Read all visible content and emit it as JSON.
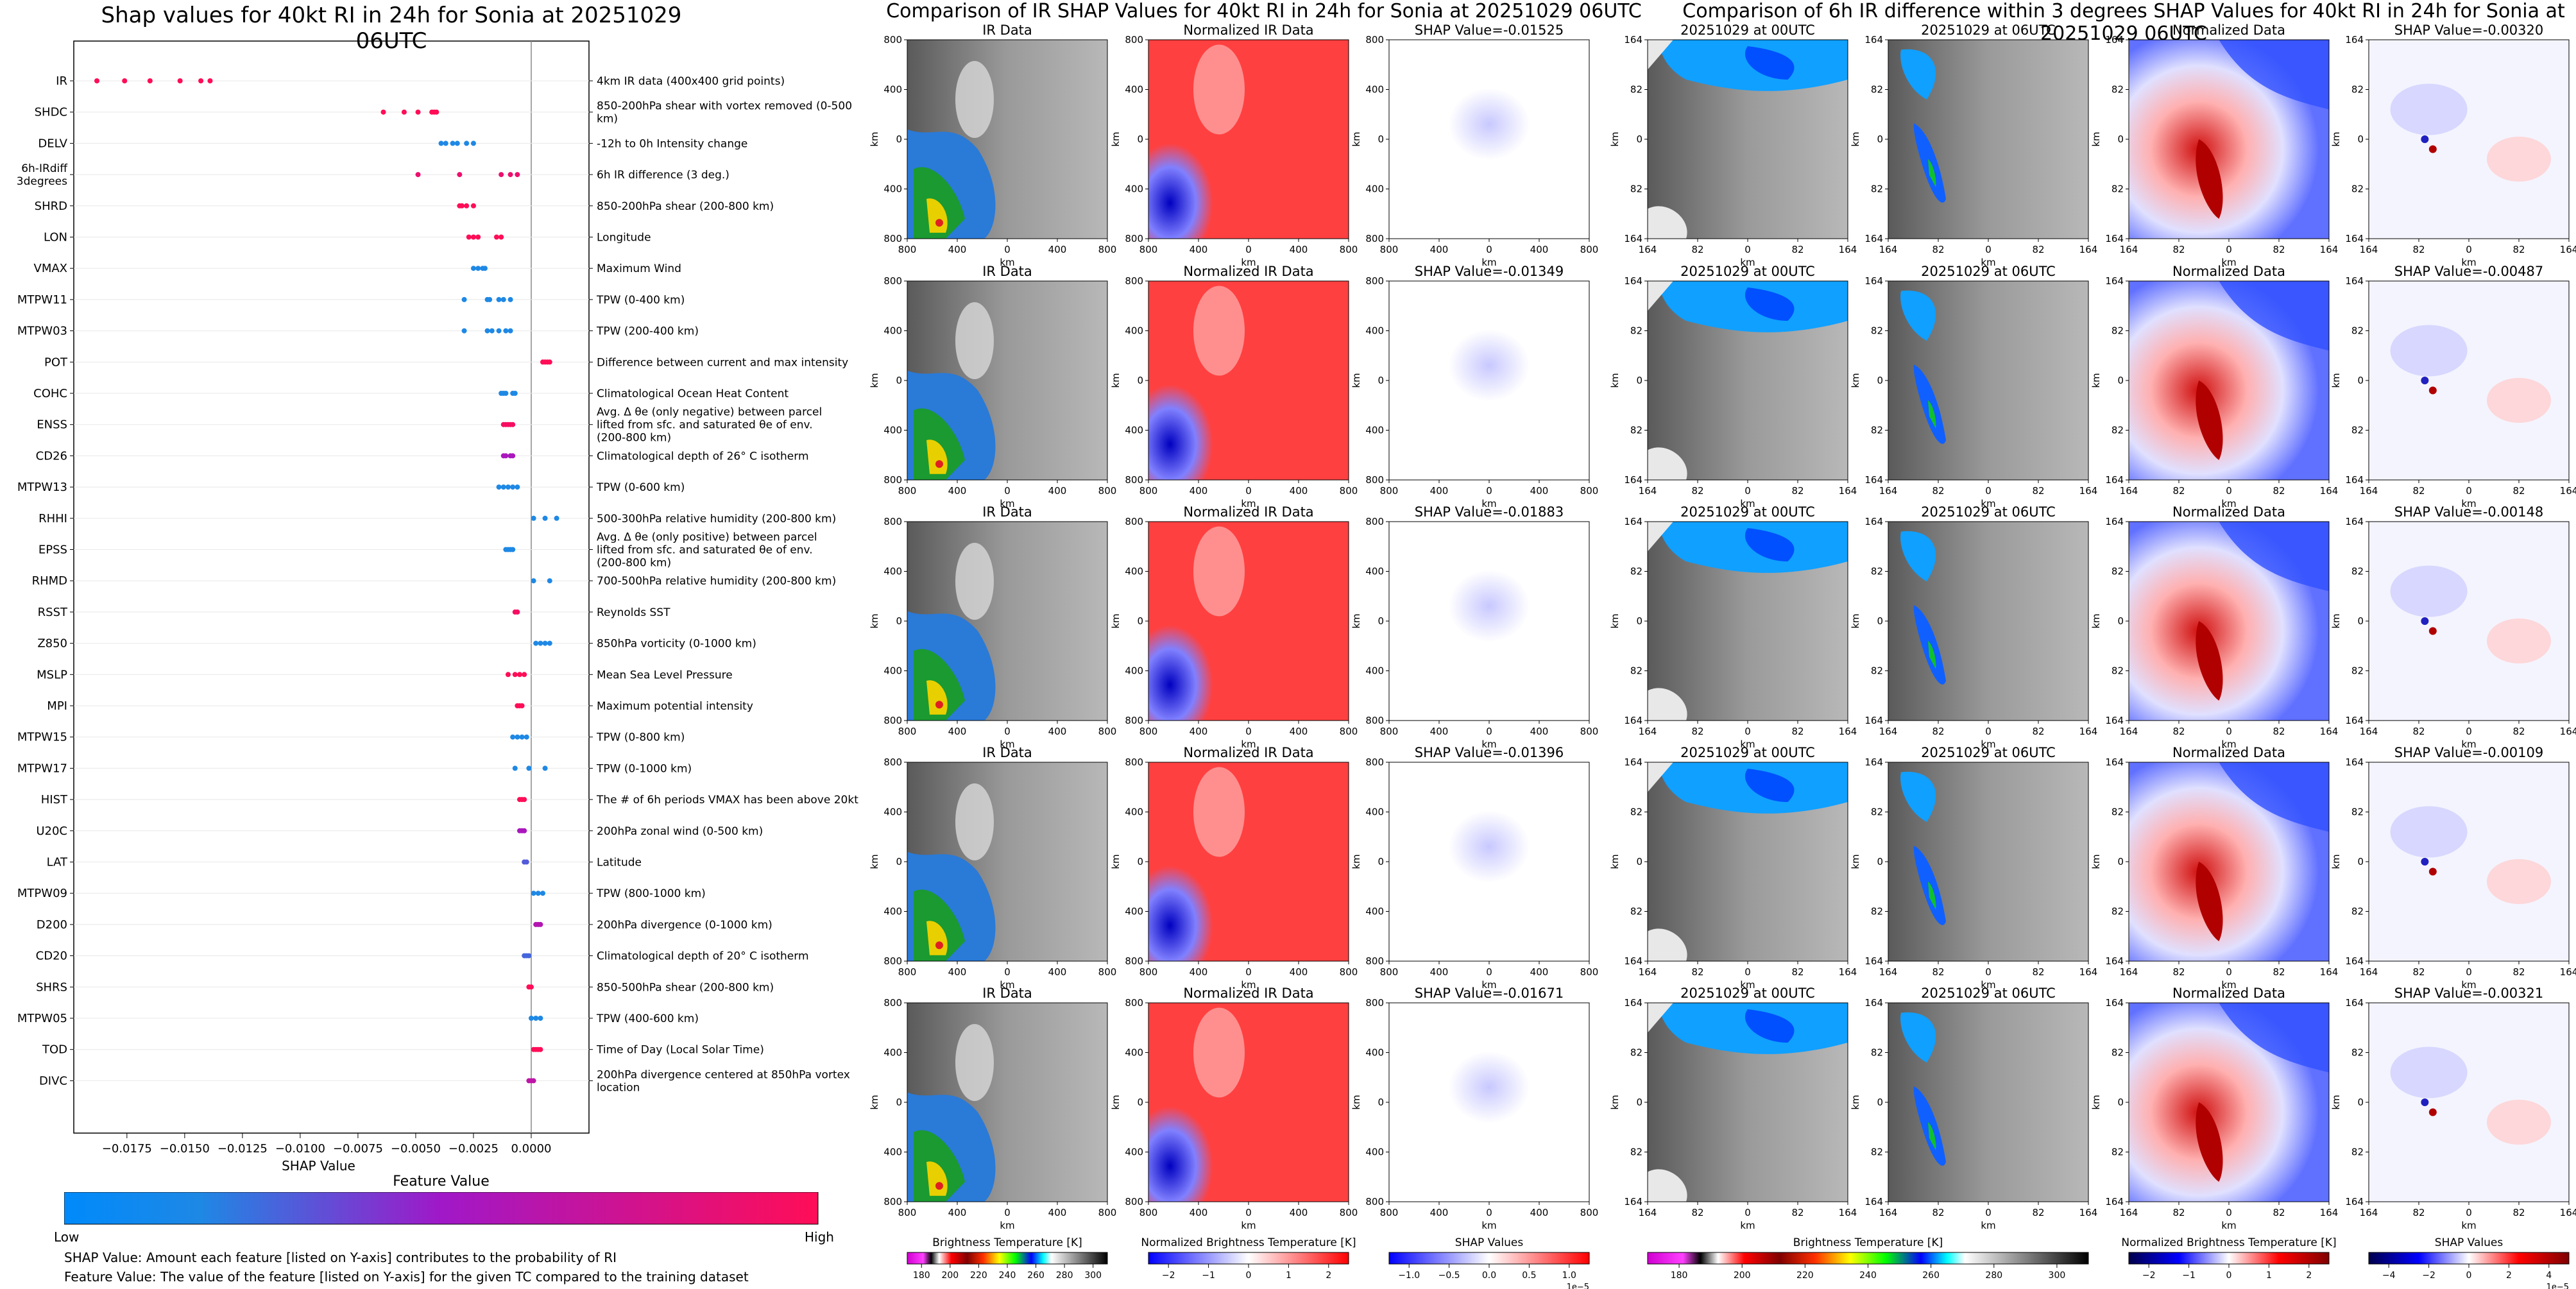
{
  "left_title": "Shap values for 40kt RI in 24h for Sonia at 20251029 06UTC",
  "mid_title": "Comparison of IR SHAP Values for 40kt RI in 24h for Sonia at 20251029 06UTC",
  "right_title": "Comparison of 6h IR difference within 3 degrees SHAP Values for 40kt RI in 24h for Sonia at 20251029 06UTC",
  "feature_value_label": "Feature Value",
  "low_label": "Low",
  "high_label": "High",
  "footnote_1": "SHAP Value: Amount each feature [listed on Y-axis] contributes to the probability of RI",
  "footnote_2": "Feature Value: The value of the feature [listed on Y-axis] for the given TC compared to the training dataset",
  "colors": {
    "low": "#1e88e5",
    "high": "#ff0d57"
  },
  "chart_data": [
    {
      "type": "scatter",
      "title": "Shap values for 40kt RI in 24h for Sonia at 20251029 06UTC",
      "xlabel": "SHAP Value",
      "xlim": [
        -0.0198,
        0.0025
      ],
      "xticks": [
        "−0.0175",
        "−0.0150",
        "−0.0125",
        "−0.0100",
        "−0.0075",
        "−0.0050",
        "−0.0025",
        "0.0000"
      ],
      "xtick_values": [
        -0.0175,
        -0.015,
        -0.0125,
        -0.01,
        -0.0075,
        -0.005,
        -0.0025,
        0.0
      ],
      "colorbar": {
        "label": "Feature Value",
        "low": "Low",
        "high": "High"
      },
      "features": [
        {
          "name": "IR",
          "desc": "4km IR data (400x400 grid points)",
          "x": [
            -0.0188,
            -0.0176,
            -0.0165,
            -0.0152,
            -0.0143,
            -0.0139
          ],
          "c": [
            1,
            1,
            1,
            1,
            1,
            1
          ]
        },
        {
          "name": "SHDC",
          "desc": "850-200hPa shear with vortex removed (0-500 km)",
          "x": [
            -0.0064,
            -0.0055,
            -0.0049,
            -0.0043,
            -0.0042,
            -0.0041
          ],
          "c": [
            1,
            1,
            1,
            1,
            1,
            1
          ]
        },
        {
          "name": "DELV",
          "desc": "-12h to 0h Intensity change",
          "x": [
            -0.0039,
            -0.0037,
            -0.0034,
            -0.0032,
            -0.0028,
            -0.0025
          ],
          "c": [
            0,
            0,
            0,
            0,
            0,
            0
          ]
        },
        {
          "name": "6h-IRdiff 3degrees",
          "desc": "6h IR difference (3 deg.)",
          "x": [
            -0.0049,
            -0.0031,
            -0.0013,
            -0.0009,
            -0.0006
          ],
          "c": [
            0.9,
            0.9,
            0.9,
            0.9,
            0.9
          ]
        },
        {
          "name": "SHRD",
          "desc": "850-200hPa shear (200-800 km)",
          "x": [
            -0.0031,
            -0.003,
            -0.0028,
            -0.0025
          ],
          "c": [
            1,
            1,
            1,
            1
          ]
        },
        {
          "name": "LON",
          "desc": "Longitude",
          "x": [
            -0.0027,
            -0.0025,
            -0.0023,
            -0.0015,
            -0.0013
          ],
          "c": [
            1,
            1,
            1,
            1,
            1
          ]
        },
        {
          "name": "VMAX",
          "desc": "Maximum Wind",
          "x": [
            -0.0025,
            -0.0023,
            -0.0021,
            -0.002
          ],
          "c": [
            0,
            0,
            0,
            0
          ]
        },
        {
          "name": "MTPW11",
          "desc": "TPW (0-400 km)",
          "x": [
            -0.0029,
            -0.0019,
            -0.0018,
            -0.0014,
            -0.0012,
            -0.0009
          ],
          "c": [
            0,
            0,
            0,
            0,
            0,
            0
          ]
        },
        {
          "name": "MTPW03",
          "desc": "TPW (200-400 km)",
          "x": [
            -0.0029,
            -0.0019,
            -0.0017,
            -0.0014,
            -0.0011,
            -0.0009
          ],
          "c": [
            0,
            0,
            0,
            0,
            0,
            0
          ]
        },
        {
          "name": "POT",
          "desc": "Difference between current and max intensity",
          "x": [
            0.0005,
            0.0006,
            0.0007,
            0.0008
          ],
          "c": [
            1,
            1,
            1,
            1
          ]
        },
        {
          "name": "COHC",
          "desc": "Climatological Ocean Heat Content",
          "x": [
            -0.0013,
            -0.0012,
            -0.0011,
            -0.0008,
            -0.0007
          ],
          "c": [
            0,
            0,
            0,
            0,
            0
          ]
        },
        {
          "name": "ENSS",
          "desc": "Avg. Δ θe (only negative) between parcel lifted from sfc. and saturated θe of env. (200-800 km)",
          "x": [
            -0.0012,
            -0.0011,
            -0.001,
            -0.0009,
            -0.0008
          ],
          "c": [
            0.95,
            0.95,
            0.95,
            0.95,
            0.95
          ]
        },
        {
          "name": "CD26",
          "desc": "Climatological depth of 26° C isotherm",
          "x": [
            -0.0012,
            -0.0011,
            -0.0009,
            -0.0008
          ],
          "c": [
            0.55,
            0.55,
            0.55,
            0.55
          ]
        },
        {
          "name": "MTPW13",
          "desc": "TPW (0-600 km)",
          "x": [
            -0.0014,
            -0.0012,
            -0.001,
            -0.0008,
            -0.0006
          ],
          "c": [
            0,
            0,
            0,
            0,
            0
          ]
        },
        {
          "name": "RHHI",
          "desc": "500-300hPa relative humidity (200-800 km)",
          "x": [
            0.0001,
            0.0006,
            0.0011
          ],
          "c": [
            0,
            0,
            0
          ]
        },
        {
          "name": "EPSS",
          "desc": "Avg. Δ θe (only positive) between parcel lifted from sfc. and saturated θe of env. (200-800 km)",
          "x": [
            -0.0011,
            -0.001,
            -0.0009,
            -0.0008
          ],
          "c": [
            0,
            0,
            0,
            0
          ]
        },
        {
          "name": "RHMD",
          "desc": "700-500hPa relative humidity (200-800 km)",
          "x": [
            0.0001,
            0.0008
          ],
          "c": [
            0,
            0
          ]
        },
        {
          "name": "RSST",
          "desc": "Reynolds SST",
          "x": [
            -0.0007,
            -0.0006
          ],
          "c": [
            0.95,
            0.95
          ]
        },
        {
          "name": "Z850",
          "desc": "850hPa vorticity (0-1000 km)",
          "x": [
            0.0002,
            0.0004,
            0.0006,
            0.0008
          ],
          "c": [
            0,
            0,
            0,
            0
          ]
        },
        {
          "name": "MSLP",
          "desc": "Mean Sea Level Pressure",
          "x": [
            -0.001,
            -0.0007,
            -0.0005,
            -0.0003
          ],
          "c": [
            1,
            1,
            1,
            1
          ]
        },
        {
          "name": "MPI",
          "desc": "Maximum potential intensity",
          "x": [
            -0.0006,
            -0.0005,
            -0.0004
          ],
          "c": [
            1,
            1,
            1
          ]
        },
        {
          "name": "MTPW15",
          "desc": "TPW (0-800 km)",
          "x": [
            -0.0008,
            -0.0006,
            -0.0004,
            -0.0002
          ],
          "c": [
            0,
            0,
            0,
            0
          ]
        },
        {
          "name": "MTPW17",
          "desc": "TPW (0-1000 km)",
          "x": [
            -0.0007,
            -0.0001,
            0.0006
          ],
          "c": [
            0,
            0,
            0
          ]
        },
        {
          "name": "HIST",
          "desc": "The # of 6h periods VMAX has been above 20kt",
          "x": [
            -0.0005,
            -0.0004,
            -0.0003
          ],
          "c": [
            1,
            1,
            1
          ]
        },
        {
          "name": "U20C",
          "desc": "200hPa zonal wind (0-500 km)",
          "x": [
            -0.0005,
            -0.0004,
            -0.0003
          ],
          "c": [
            0.55,
            0.55,
            0.55
          ]
        },
        {
          "name": "LAT",
          "desc": "Latitude",
          "x": [
            -0.0003,
            -0.0002
          ],
          "c": [
            0.2,
            0.2
          ]
        },
        {
          "name": "MTPW09",
          "desc": "TPW (800-1000 km)",
          "x": [
            0.0001,
            0.0003,
            0.0005
          ],
          "c": [
            0,
            0,
            0
          ]
        },
        {
          "name": "D200",
          "desc": "200hPa divergence (0-1000 km)",
          "x": [
            0.0002,
            0.0003,
            0.0004
          ],
          "c": [
            0.6,
            0.6,
            0.6
          ]
        },
        {
          "name": "CD20",
          "desc": "Climatological depth of 20° C isotherm",
          "x": [
            -0.0003,
            -0.0002,
            -0.0001
          ],
          "c": [
            0.15,
            0.15,
            0.15
          ]
        },
        {
          "name": "SHRS",
          "desc": "850-500hPa shear (200-800 km)",
          "x": [
            -0.0001,
            0.0
          ],
          "c": [
            1,
            1
          ]
        },
        {
          "name": "MTPW05",
          "desc": "TPW (400-600 km)",
          "x": [
            0.0,
            0.0002,
            0.0004
          ],
          "c": [
            0,
            0,
            0
          ]
        },
        {
          "name": "TOD",
          "desc": "Time of Day (Local Solar Time)",
          "x": [
            0.0001,
            0.0002,
            0.0003,
            0.0004
          ],
          "c": [
            1,
            1,
            1,
            1
          ]
        },
        {
          "name": "DIVC",
          "desc": "200hPa divergence centered at 850hPa vortex location",
          "x": [
            -0.0001,
            0.0,
            0.0001
          ],
          "c": [
            0.65,
            0.65,
            0.65
          ]
        }
      ]
    },
    {
      "type": "heatmap",
      "title": "Comparison of IR SHAP Values for 40kt RI in 24h for Sonia at 20251029 06UTC",
      "columns": [
        "IR Data",
        "Normalized IR Data",
        "SHAP"
      ],
      "shap_values": [
        "SHAP Value=-0.01525",
        "SHAP Value=-0.01349",
        "SHAP Value=-0.01883",
        "SHAP Value=-0.01396",
        "SHAP Value=-0.01671"
      ],
      "axis_label": "km",
      "ticks": [
        "800",
        "400",
        "0",
        "400",
        "800"
      ],
      "colorbars": [
        {
          "label": "Brightness Temperature [K]",
          "ticks": [
            "180",
            "200",
            "220",
            "240",
            "260",
            "280",
            "300"
          ]
        },
        {
          "label": "Normalized Brightness Temperature [K]",
          "ticks": [
            "−2",
            "−1",
            "0",
            "1",
            "2"
          ]
        },
        {
          "label": "SHAP Values",
          "ticks": [
            "−1.0",
            "−0.5",
            "0.0",
            "0.5",
            "1.0"
          ],
          "scale": "1e−5"
        }
      ]
    },
    {
      "type": "heatmap",
      "title": "Comparison of 6h IR difference within 3 degrees SHAP Values for 40kt RI in 24h for Sonia at 20251029 06UTC",
      "columns": [
        "20251029 at 00UTC",
        "20251029 at 06UTC",
        "Normalized Data",
        "SHAP"
      ],
      "shap_values": [
        "SHAP Value=-0.00320",
        "SHAP Value=-0.00487",
        "SHAP Value=-0.00148",
        "SHAP Value=-0.00109",
        "SHAP Value=-0.00321"
      ],
      "axis_label": "km",
      "ticks": [
        "164",
        "82",
        "0",
        "82",
        "164"
      ],
      "colorbars": [
        {
          "label": "Brightness Temperature [K]",
          "ticks": [
            "180",
            "200",
            "220",
            "240",
            "260",
            "280",
            "300"
          ]
        },
        {
          "label": "Normalized Brightness Temperature [K]",
          "ticks": [
            "−2",
            "−1",
            "0",
            "1",
            "2"
          ]
        },
        {
          "label": "SHAP Values",
          "ticks": [
            "−4",
            "−2",
            "0",
            "2",
            "4"
          ],
          "scale": "1e−5"
        }
      ]
    }
  ]
}
